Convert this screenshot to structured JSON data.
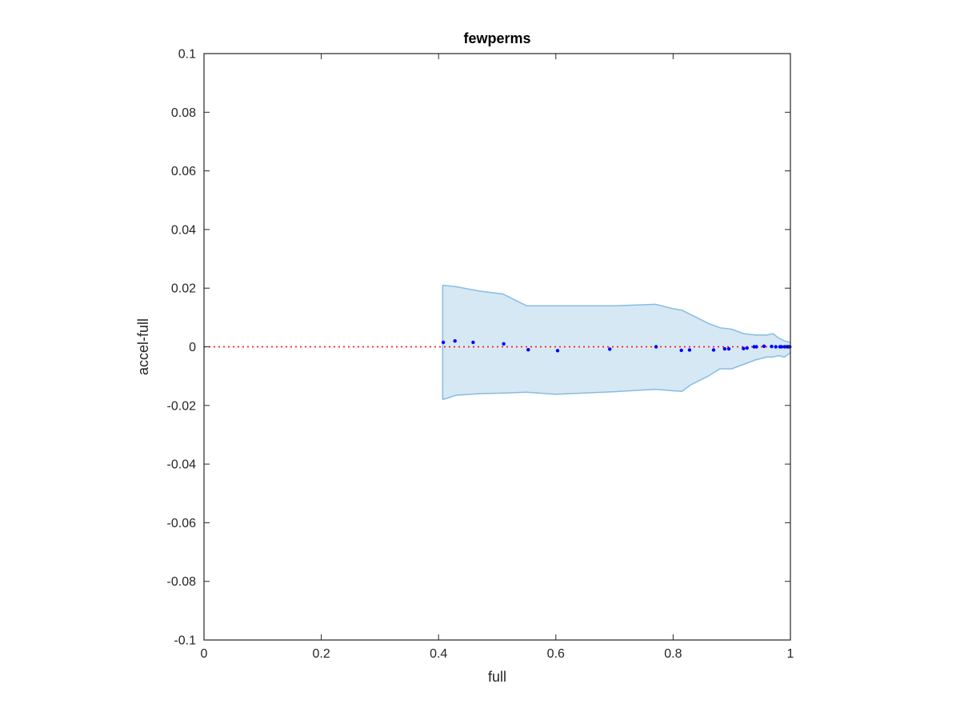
{
  "chart_data": {
    "type": "scatter",
    "title": "fewperms",
    "xlabel": "full",
    "ylabel": "accel-full",
    "xlim": [
      0,
      1
    ],
    "ylim": [
      -0.1,
      0.1
    ],
    "xticks": [
      0,
      0.2,
      0.4,
      0.6,
      0.8,
      1
    ],
    "xtick_labels": [
      "0",
      "0.2",
      "0.4",
      "0.6",
      "0.8",
      "1"
    ],
    "yticks": [
      0.1,
      0.08,
      0.06,
      0.04,
      0.02,
      0,
      -0.02,
      -0.04,
      -0.06,
      -0.08,
      -0.1
    ],
    "ytick_labels": [
      "0.1",
      "0.08",
      "0.06",
      "0.04",
      "0.02",
      "0",
      "-0.02",
      "-0.04",
      "-0.06",
      "-0.08",
      "-0.1"
    ],
    "grid": false,
    "reference_line": {
      "y": 0,
      "style": "dotted",
      "color": "#ff0000"
    },
    "band": {
      "x": [
        0.407,
        0.43,
        0.47,
        0.51,
        0.55,
        0.6,
        0.7,
        0.77,
        0.8,
        0.815,
        0.83,
        0.86,
        0.88,
        0.9,
        0.92,
        0.94,
        0.96,
        0.97,
        0.98,
        0.99,
        1.0
      ],
      "upper": [
        0.021,
        0.0205,
        0.019,
        0.018,
        0.014,
        0.014,
        0.014,
        0.0145,
        0.013,
        0.0125,
        0.011,
        0.008,
        0.0065,
        0.006,
        0.0045,
        0.004,
        0.004,
        0.0045,
        0.003,
        0.002,
        0.0015
      ],
      "lower": [
        -0.018,
        -0.0165,
        -0.016,
        -0.0158,
        -0.0155,
        -0.0162,
        -0.0153,
        -0.0145,
        -0.015,
        -0.0152,
        -0.013,
        -0.01,
        -0.0075,
        -0.0075,
        -0.006,
        -0.0045,
        -0.0035,
        -0.0035,
        -0.003,
        -0.0035,
        -0.002
      ],
      "fill_color": "#d6e8f4",
      "edge_color": "#86bde3"
    },
    "series": [
      {
        "x": [
          0.408,
          0.428,
          0.459,
          0.511,
          0.553,
          0.603,
          0.692,
          0.771,
          0.814,
          0.828,
          0.869,
          0.888,
          0.895,
          0.92,
          0.926,
          0.938,
          0.942,
          0.955,
          0.968,
          0.975,
          0.982,
          0.985,
          0.99,
          0.994,
          0.997,
          0.999
        ],
        "y": [
          0.0015,
          0.002,
          0.0015,
          0.001,
          -0.001,
          -0.0013,
          -0.0008,
          0.0,
          -0.0012,
          -0.0011,
          -0.0011,
          -0.0007,
          -0.0007,
          -0.0006,
          -0.0004,
          0.0,
          0.0,
          0.0002,
          0.0001,
          0.0,
          0.0,
          0.0,
          0.0,
          0.0,
          0.0,
          0.0
        ],
        "color": "#0000ff"
      }
    ]
  }
}
